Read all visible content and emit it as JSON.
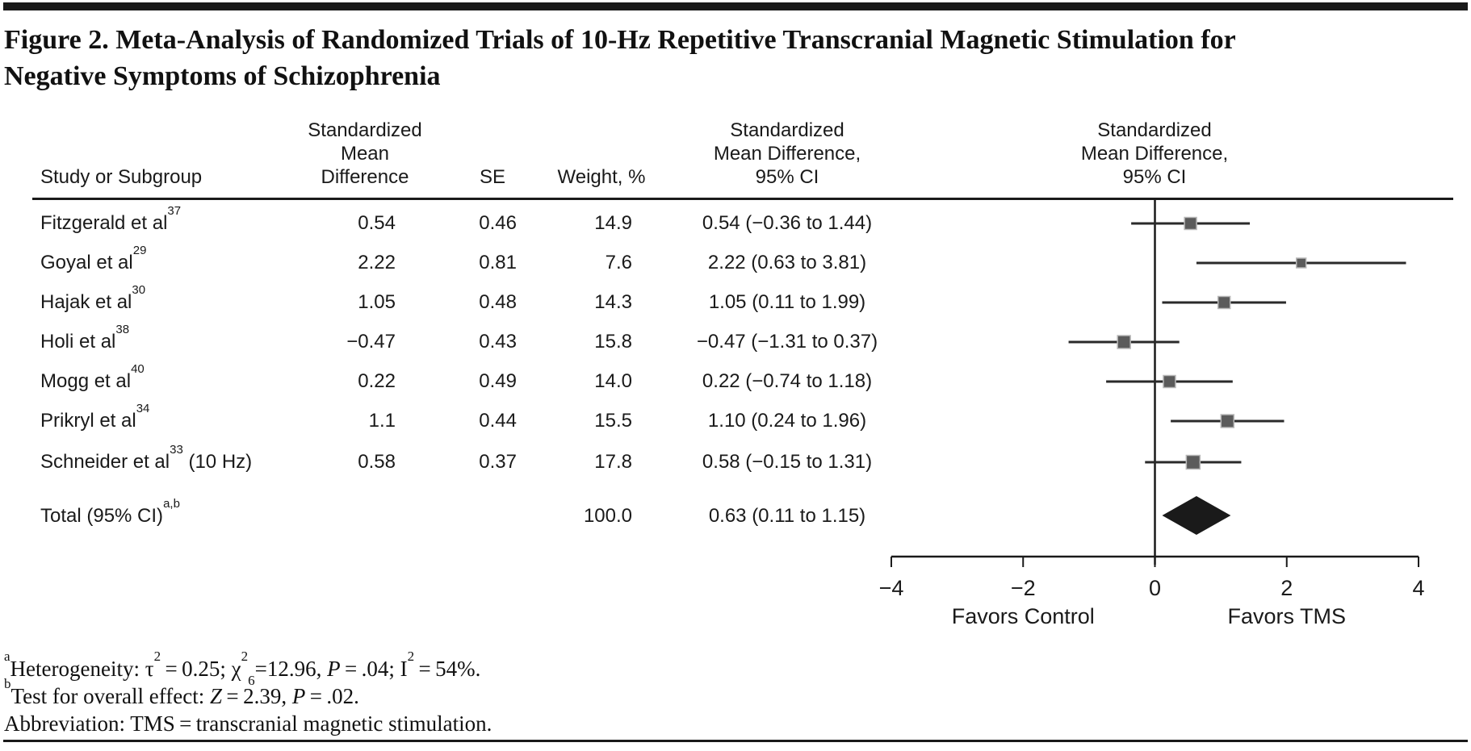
{
  "figure": {
    "title": "Figure 2. Meta-Analysis of Randomized Trials of 10-Hz Repetitive Transcranial Magnetic Stimulation for Negative Symptoms of Schizophrenia"
  },
  "table": {
    "headers": {
      "study": "Study or Subgroup",
      "smd": "Standardized\nMean\nDifference",
      "se": "SE",
      "weight": "Weight, %",
      "ci": "Standardized\nMean Difference,\n95% CI",
      "plot": "Standardized\nMean Difference,\n95% CI"
    },
    "rows": [
      {
        "study": "Fitzgerald et al",
        "sup": "37",
        "suffix": "",
        "smd": "0.54",
        "se": "0.46",
        "weight": "14.9",
        "ci": "0.54 (−0.36 to 1.44)"
      },
      {
        "study": "Goyal et al",
        "sup": "29",
        "suffix": "",
        "smd": "2.22",
        "se": "0.81",
        "weight": "7.6",
        "ci": "2.22 (0.63 to 3.81)"
      },
      {
        "study": "Hajak et al",
        "sup": "30",
        "suffix": "",
        "smd": "1.05",
        "se": "0.48",
        "weight": "14.3",
        "ci": "1.05 (0.11 to 1.99)"
      },
      {
        "study": "Holi et al",
        "sup": "38",
        "suffix": "",
        "smd": "−0.47",
        "se": "0.43",
        "weight": "15.8",
        "ci": "−0.47 (−1.31 to 0.37)"
      },
      {
        "study": "Mogg et al",
        "sup": "40",
        "suffix": "",
        "smd": "0.22",
        "se": "0.49",
        "weight": "14.0",
        "ci": "0.22 (−0.74 to 1.18)"
      },
      {
        "study": "Prikryl et al",
        "sup": "34",
        "suffix": "",
        "smd": "1.1",
        "se": "0.44",
        "weight": "15.5",
        "ci": "1.10 (0.24 to 1.96)"
      },
      {
        "study": "Schneider et al",
        "sup": "33",
        "suffix": " (10 Hz)",
        "smd": "0.58",
        "se": "0.37",
        "weight": "17.8",
        "ci": "0.58 (−0.15 to 1.31)"
      }
    ],
    "total": {
      "label": "Total (95% CI)",
      "sup": "a,b",
      "weight": "100.0",
      "ci": "0.63 (0.11 to 1.15)"
    }
  },
  "chart_data": {
    "type": "forest",
    "title": "Standardized Mean Difference, 95% CI",
    "x_axis": {
      "min": -4,
      "max": 4,
      "ticks": [
        -4,
        -2,
        0,
        2,
        4
      ],
      "tick_labels": [
        "−4",
        "−2",
        "0",
        "2",
        "4"
      ],
      "left_label": "Favors Control",
      "right_label": "Favors TMS",
      "zero_reference_line": 0
    },
    "studies": [
      {
        "name": "Fitzgerald et al 37",
        "smd": 0.54,
        "ci_low": -0.36,
        "ci_high": 1.44,
        "weight_pct": 14.9
      },
      {
        "name": "Goyal et al 29",
        "smd": 2.22,
        "ci_low": 0.63,
        "ci_high": 3.81,
        "weight_pct": 7.6
      },
      {
        "name": "Hajak et al 30",
        "smd": 1.05,
        "ci_low": 0.11,
        "ci_high": 1.99,
        "weight_pct": 14.3
      },
      {
        "name": "Holi et al 38",
        "smd": -0.47,
        "ci_low": -1.31,
        "ci_high": 0.37,
        "weight_pct": 15.8
      },
      {
        "name": "Mogg et al 40",
        "smd": 0.22,
        "ci_low": -0.74,
        "ci_high": 1.18,
        "weight_pct": 14.0
      },
      {
        "name": "Prikryl et al 34",
        "smd": 1.1,
        "ci_low": 0.24,
        "ci_high": 1.96,
        "weight_pct": 15.5
      },
      {
        "name": "Schneider et al 33 (10 Hz)",
        "smd": 0.58,
        "ci_low": -0.15,
        "ci_high": 1.31,
        "weight_pct": 17.8
      }
    ],
    "total": {
      "label": "Total (95% CI)",
      "smd": 0.63,
      "ci_low": 0.11,
      "ci_high": 1.15,
      "weight_pct": 100.0
    },
    "colors": {
      "marker": "#5b5b5b",
      "marker_outline": "#b9b9b9",
      "ci_line": "#2a2a2a",
      "diamond": "#1a1a1a",
      "axis": "#1a1a1a"
    }
  },
  "footnotes": {
    "a": [
      {
        "t": "sup",
        "v": "a"
      },
      {
        "t": "text",
        "v": "Heterogeneity: τ"
      },
      {
        "t": "sup",
        "v": "2"
      },
      {
        "t": "text",
        "v": " = 0.25; χ"
      },
      {
        "t": "sup",
        "v": "2"
      },
      {
        "t": "sub",
        "v": "6"
      },
      {
        "t": "text",
        "v": "=12.96, "
      },
      {
        "t": "i",
        "v": "P"
      },
      {
        "t": "text",
        "v": " = .04; I"
      },
      {
        "t": "sup",
        "v": "2"
      },
      {
        "t": "text",
        "v": " = 54%."
      }
    ],
    "b": [
      {
        "t": "sup",
        "v": "b"
      },
      {
        "t": "text",
        "v": "Test for overall effect: "
      },
      {
        "t": "i",
        "v": "Z"
      },
      {
        "t": "text",
        "v": " = 2.39, "
      },
      {
        "t": "i",
        "v": "P"
      },
      {
        "t": "text",
        "v": " = .02."
      }
    ],
    "abbrev": [
      {
        "t": "text",
        "v": "Abbreviation: TMS = transcranial magnetic stimulation."
      }
    ]
  }
}
